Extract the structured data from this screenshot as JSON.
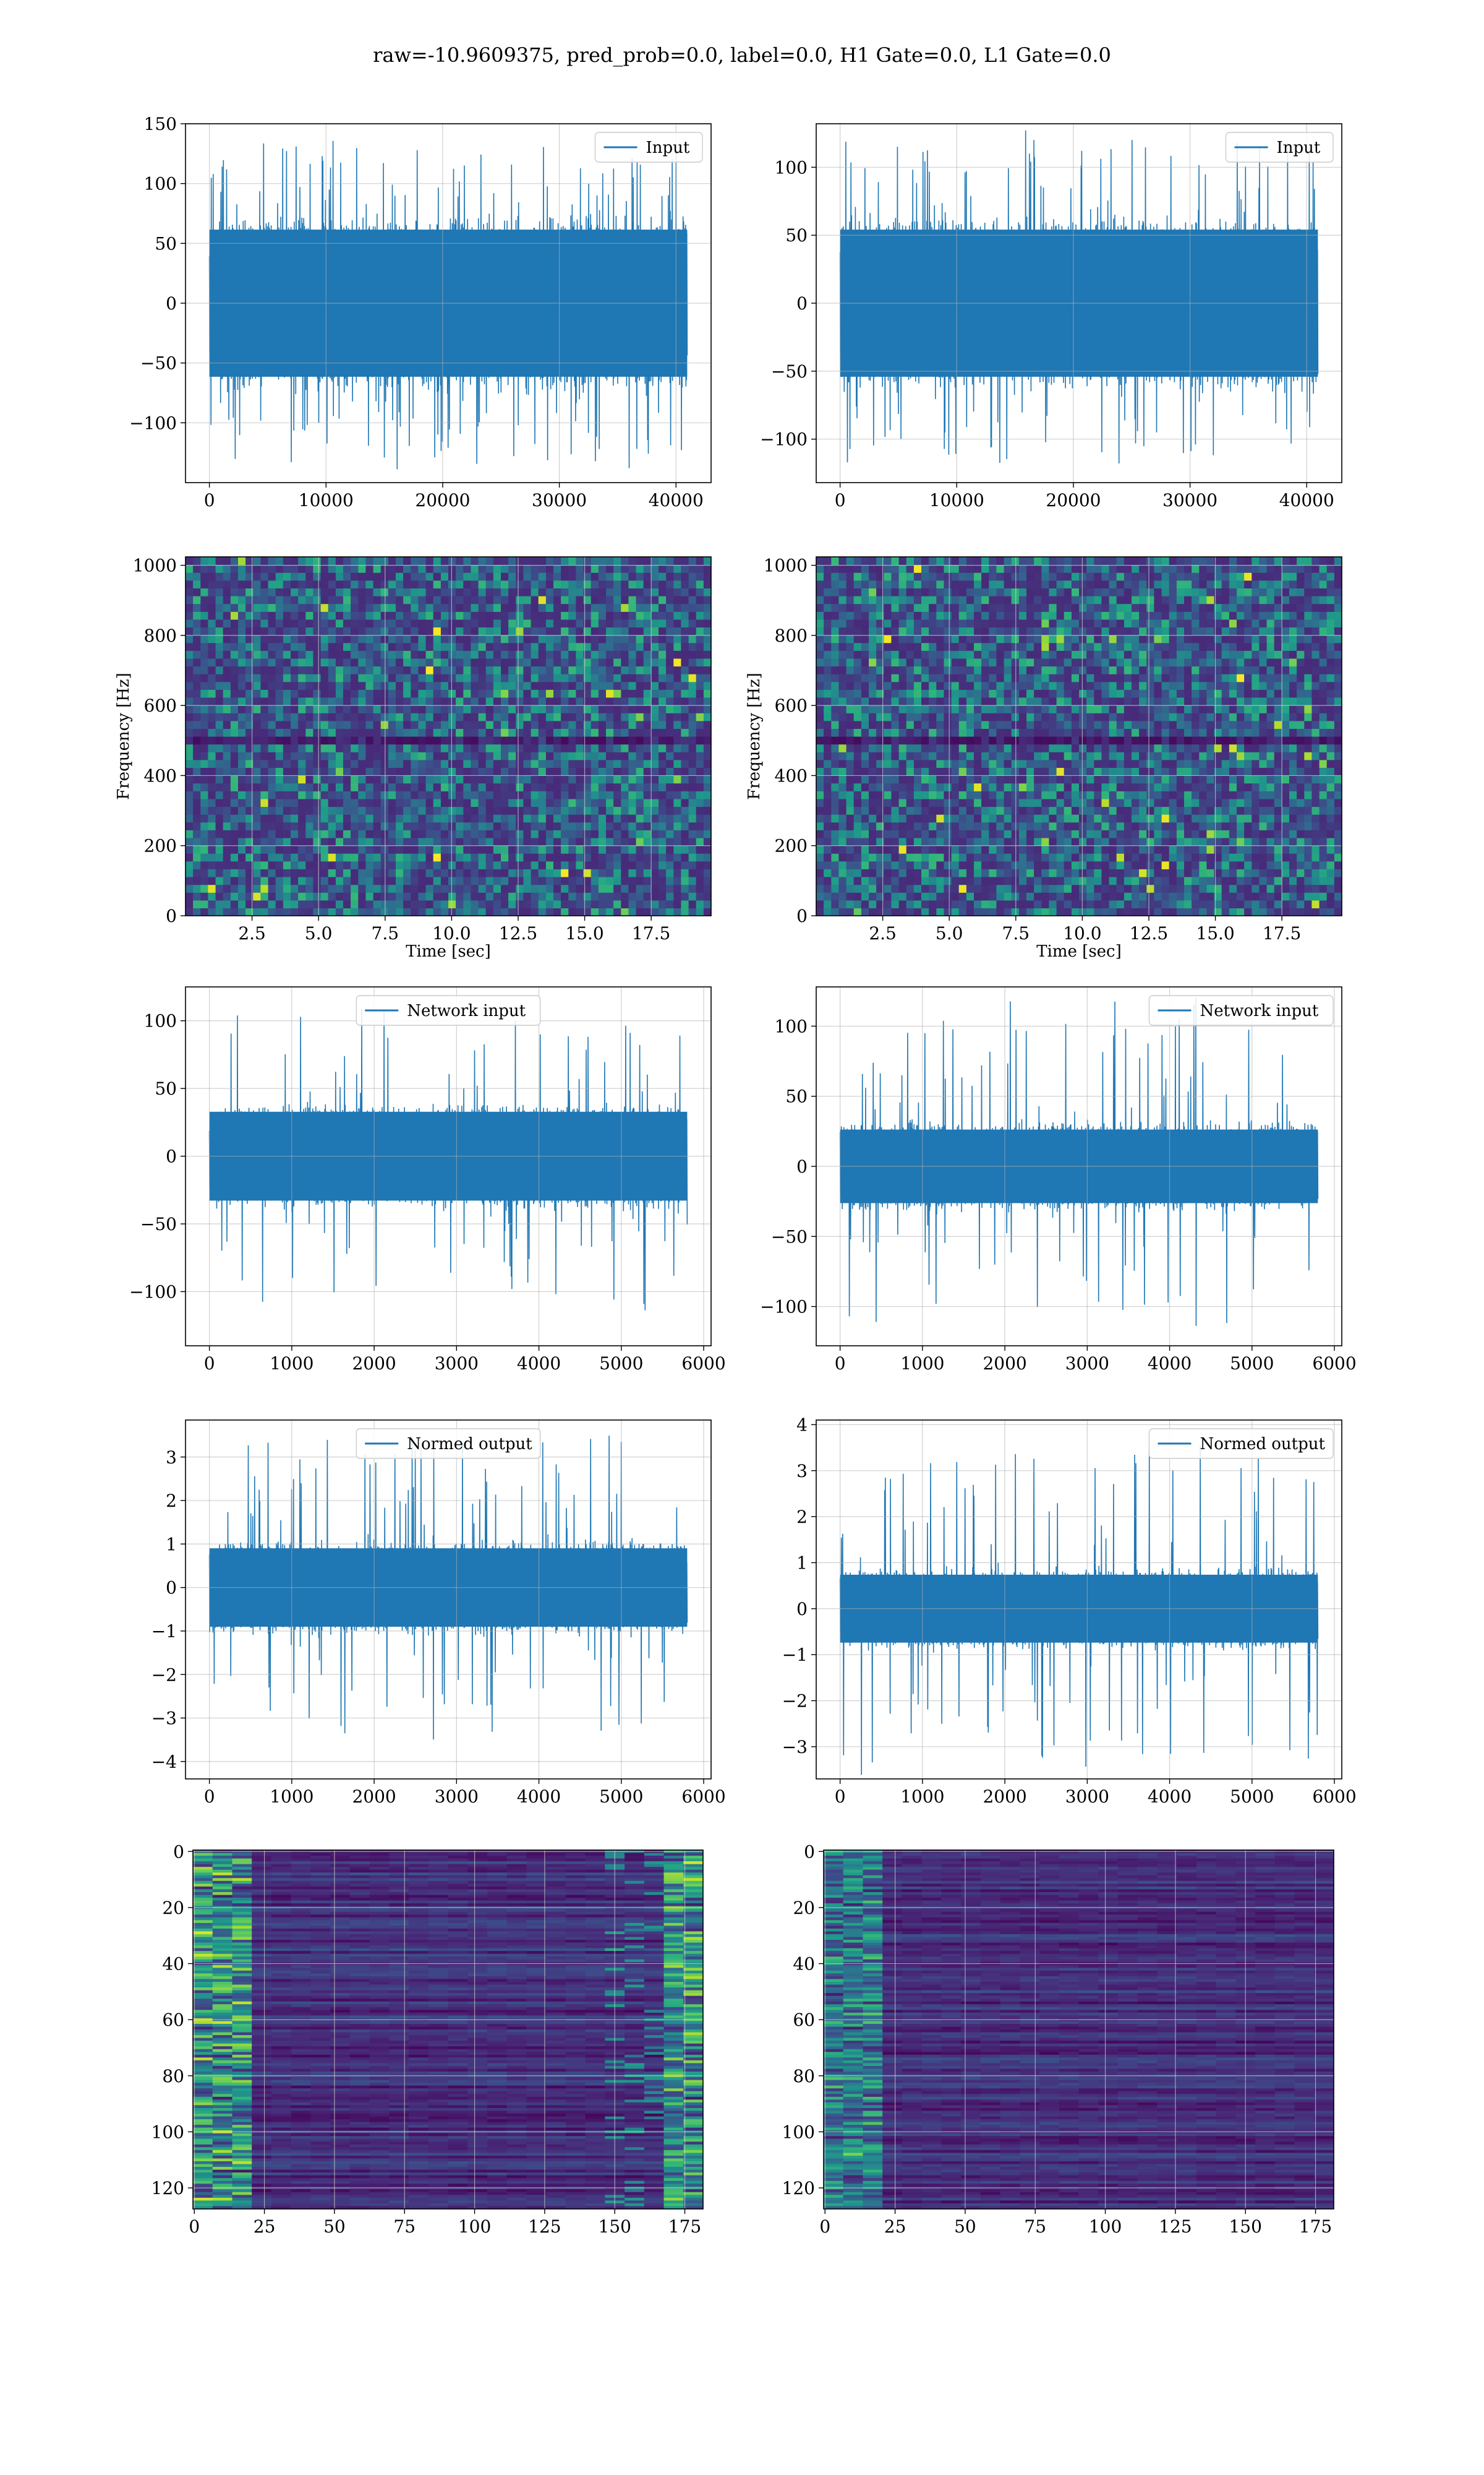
{
  "figure": {
    "title": "raw=-10.9609375, pred_prob=0.0, label=0.0, H1 Gate=0.0, L1 Gate=0.0"
  },
  "colors": {
    "series": "#1f77b4",
    "grid": "#b0b0b0",
    "spine": "#000000"
  },
  "chart_data": [
    {
      "id": "input-h1",
      "type": "line",
      "grid": true,
      "legend": "top-right",
      "series": [
        {
          "name": "Input"
        }
      ],
      "xlim": [
        -2048,
        43008
      ],
      "ylim": [
        -150,
        150
      ],
      "xticks": [
        0,
        10000,
        20000,
        30000,
        40000
      ],
      "yticks": [
        -100,
        -50,
        0,
        50,
        100,
        150
      ],
      "ytick_labels": [
        "−100",
        "−50",
        "0",
        "50",
        "100",
        "150"
      ],
      "x_range": [
        0,
        40960
      ],
      "envelope": 75,
      "peak": 137,
      "seed": 11
    },
    {
      "id": "input-l1",
      "type": "line",
      "grid": true,
      "legend": "top-right",
      "series": [
        {
          "name": "Input"
        }
      ],
      "xlim": [
        -2048,
        43008
      ],
      "ylim": [
        -132,
        132
      ],
      "xticks": [
        0,
        10000,
        20000,
        30000,
        40000
      ],
      "yticks": [
        -100,
        -50,
        0,
        50,
        100
      ],
      "ytick_labels": [
        "−100",
        "−50",
        "0",
        "50",
        "100"
      ],
      "x_range": [
        0,
        40960
      ],
      "envelope": 66,
      "peak": 120,
      "seed": 23
    },
    {
      "id": "spec-h1",
      "type": "heatmap",
      "grid": true,
      "colormap": "viridis",
      "xlabel": "Time [sec]",
      "ylabel": "Frequency [Hz]",
      "xlim": [
        0,
        19.75
      ],
      "ylim": [
        0,
        1024
      ],
      "xticks": [
        2.5,
        5.0,
        7.5,
        10.0,
        12.5,
        15.0,
        17.5
      ],
      "xtick_labels": [
        "2.5",
        "5.0",
        "7.5",
        "10.0",
        "12.5",
        "15.0",
        "17.5"
      ],
      "yticks": [
        0,
        200,
        400,
        600,
        800,
        1000
      ],
      "ytick_labels": [
        "0",
        "200",
        "400",
        "600",
        "800",
        "1000"
      ],
      "seed": 31
    },
    {
      "id": "spec-l1",
      "type": "heatmap",
      "grid": true,
      "colormap": "viridis",
      "xlabel": "Time [sec]",
      "ylabel": "Frequency [Hz]",
      "xlim": [
        0,
        19.75
      ],
      "ylim": [
        0,
        1024
      ],
      "xticks": [
        2.5,
        5.0,
        7.5,
        10.0,
        12.5,
        15.0,
        17.5
      ],
      "xtick_labels": [
        "2.5",
        "5.0",
        "7.5",
        "10.0",
        "12.5",
        "15.0",
        "17.5"
      ],
      "yticks": [
        0,
        200,
        400,
        600,
        800,
        1000
      ],
      "ytick_labels": [
        "0",
        "200",
        "400",
        "600",
        "800",
        "1000"
      ],
      "seed": 47
    },
    {
      "id": "network-input-h1",
      "type": "line",
      "grid": true,
      "legend": "top-center",
      "series": [
        {
          "name": "Network input"
        }
      ],
      "xlim": [
        -290,
        6090
      ],
      "ylim": [
        -140,
        125
      ],
      "xticks": [
        0,
        1000,
        2000,
        3000,
        4000,
        5000,
        6000
      ],
      "yticks": [
        -100,
        -50,
        0,
        50,
        100
      ],
      "ytick_labels": [
        "−100",
        "−50",
        "0",
        "50",
        "100"
      ],
      "x_range": [
        0,
        5800
      ],
      "envelope": 40,
      "peak": 113,
      "seed": 53
    },
    {
      "id": "network-input-l1",
      "type": "line",
      "grid": true,
      "legend": "top-right",
      "series": [
        {
          "name": "Network input"
        }
      ],
      "xlim": [
        -290,
        6090
      ],
      "ylim": [
        -128,
        128
      ],
      "xticks": [
        0,
        1000,
        2000,
        3000,
        4000,
        5000,
        6000
      ],
      "yticks": [
        -100,
        -50,
        0,
        50,
        100
      ],
      "ytick_labels": [
        "−100",
        "−50",
        "0",
        "50",
        "100"
      ],
      "x_range": [
        0,
        5800
      ],
      "envelope": 32,
      "peak": 118,
      "seed": 61
    },
    {
      "id": "normed-output-h1",
      "type": "line",
      "grid": true,
      "legend": "top-center",
      "series": [
        {
          "name": "Normed output"
        }
      ],
      "xlim": [
        -290,
        6090
      ],
      "ylim": [
        -4.4,
        3.85
      ],
      "xticks": [
        0,
        1000,
        2000,
        3000,
        4000,
        5000,
        6000
      ],
      "yticks": [
        -4,
        -3,
        -2,
        -1,
        0,
        1,
        2,
        3
      ],
      "ytick_labels": [
        "−4",
        "−3",
        "−2",
        "−1",
        "0",
        "1",
        "2",
        "3"
      ],
      "x_range": [
        0,
        5800
      ],
      "envelope": 1.1,
      "peak": 3.5,
      "seed": 71
    },
    {
      "id": "normed-output-l1",
      "type": "line",
      "grid": true,
      "legend": "top-right",
      "series": [
        {
          "name": "Normed output"
        }
      ],
      "xlim": [
        -290,
        6090
      ],
      "ylim": [
        -3.7,
        4.1
      ],
      "xticks": [
        0,
        1000,
        2000,
        3000,
        4000,
        5000,
        6000
      ],
      "yticks": [
        -3,
        -2,
        -1,
        0,
        1,
        2,
        3,
        4
      ],
      "ytick_labels": [
        "−3",
        "−2",
        "−1",
        "0",
        "1",
        "2",
        "3",
        "4"
      ],
      "x_range": [
        0,
        5800
      ],
      "envelope": 0.9,
      "peak": 3.6,
      "seed": 83
    },
    {
      "id": "feature-map-h1",
      "type": "heatmap",
      "grid": true,
      "colormap": "viridis",
      "orientation": "top-down",
      "xlim": [
        -0.5,
        181.5
      ],
      "ylim": [
        127.5,
        -0.5
      ],
      "rows": 128,
      "cols": 182,
      "xticks": [
        0,
        25,
        50,
        75,
        100,
        125,
        150,
        175
      ],
      "xtick_labels": [
        "0",
        "25",
        "50",
        "75",
        "100",
        "125",
        "150",
        "175"
      ],
      "yticks": [
        0,
        20,
        40,
        60,
        80,
        100,
        120
      ],
      "ytick_labels": [
        "0",
        "20",
        "40",
        "60",
        "80",
        "100",
        "120"
      ],
      "seed": 97
    },
    {
      "id": "feature-map-l1",
      "type": "heatmap",
      "grid": true,
      "colormap": "viridis",
      "orientation": "top-down",
      "xlim": [
        -0.5,
        181.5
      ],
      "ylim": [
        127.5,
        -0.5
      ],
      "rows": 128,
      "cols": 182,
      "xticks": [
        0,
        25,
        50,
        75,
        100,
        125,
        150,
        175
      ],
      "xtick_labels": [
        "0",
        "25",
        "50",
        "75",
        "100",
        "125",
        "150",
        "175"
      ],
      "yticks": [
        0,
        20,
        40,
        60,
        80,
        100,
        120
      ],
      "ytick_labels": [
        "0",
        "20",
        "40",
        "60",
        "80",
        "100",
        "120"
      ],
      "seed": 101
    }
  ]
}
